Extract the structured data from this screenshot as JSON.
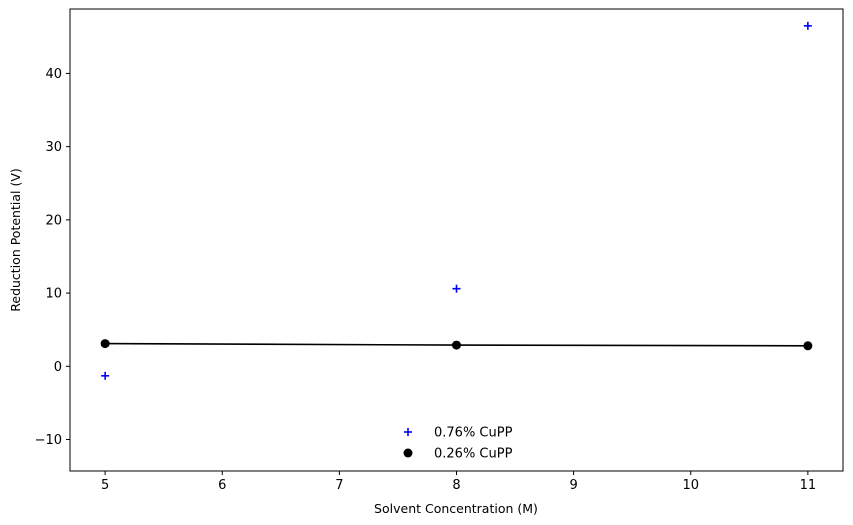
{
  "chart_data": {
    "type": "scatter",
    "xlabel": "Solvent Concentration (M)",
    "ylabel": "Reduction Potential (V)",
    "xlim": [
      4.7,
      11.3
    ],
    "ylim": [
      -14.3,
      48.8
    ],
    "xticks": [
      5,
      6,
      7,
      8,
      9,
      10,
      11
    ],
    "yticks": [
      -10,
      0,
      10,
      20,
      30,
      40
    ],
    "grid": false,
    "legend_position": "lower-center",
    "series": [
      {
        "name": "0.76% CuPP",
        "marker": "plus",
        "color": "#0000ff",
        "line": false,
        "x": [
          5,
          8,
          11
        ],
        "y": [
          -1.3,
          10.6,
          46.5
        ]
      },
      {
        "name": "0.26% CuPP",
        "marker": "circle",
        "color": "#000000",
        "line": true,
        "x": [
          5,
          8,
          11
        ],
        "y": [
          3.1,
          2.9,
          2.8
        ]
      }
    ]
  }
}
